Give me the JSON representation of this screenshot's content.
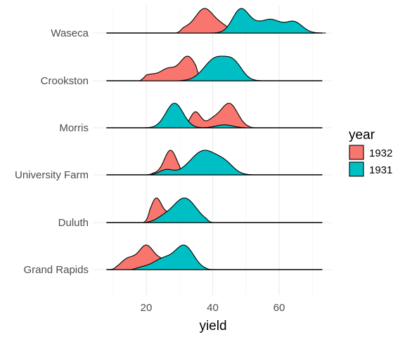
{
  "chart_data": {
    "type": "ridgeline-density",
    "title": "",
    "xlabel": "yield",
    "ylabel": "",
    "xlim": [
      7,
      74
    ],
    "x_ticks": [
      20,
      40,
      60
    ],
    "x_tick_labels": [
      "20",
      "40",
      "60"
    ],
    "categories": [
      "Grand Rapids",
      "Duluth",
      "University Farm",
      "Morris",
      "Crookston",
      "Waseca"
    ],
    "grid": true,
    "legend": {
      "title": "year",
      "position": "right",
      "entries": [
        {
          "label": "1932",
          "color": "#F8766D"
        },
        {
          "label": "1931",
          "color": "#00BFC4"
        }
      ]
    },
    "series": [
      {
        "name": "1932",
        "color": "#F8766D",
        "ridges": [
          {
            "category": "Waseca",
            "range": [
              29,
              47
            ],
            "peaks": [
              {
                "mu": 37.5,
                "sd": 2.8,
                "h": 1.0
              },
              {
                "mu": 31.5,
                "sd": 2.0,
                "h": 0.15
              },
              {
                "mu": 43,
                "sd": 2.2,
                "h": 0.25
              }
            ]
          },
          {
            "category": "Crookston",
            "range": [
              18,
              37
            ],
            "peaks": [
              {
                "mu": 32.5,
                "sd": 2.5,
                "h": 1.0
              },
              {
                "mu": 26.5,
                "sd": 2.2,
                "h": 0.45
              },
              {
                "mu": 21,
                "sd": 2.5,
                "h": 0.25
              }
            ]
          },
          {
            "category": "Morris",
            "range": [
              30,
              53
            ],
            "peaks": [
              {
                "mu": 34.8,
                "sd": 1.6,
                "h": 0.65
              },
              {
                "mu": 45,
                "sd": 2.5,
                "h": 1.0
              },
              {
                "mu": 40,
                "sd": 2.0,
                "h": 0.3
              }
            ]
          },
          {
            "category": "University Farm",
            "range": [
              20,
              32
            ],
            "peaks": [
              {
                "mu": 27.3,
                "sd": 1.9,
                "h": 1.0
              },
              {
                "mu": 22.5,
                "sd": 1.5,
                "h": 0.05
              }
            ]
          },
          {
            "category": "Duluth",
            "range": [
              19,
              30
            ],
            "peaks": [
              {
                "mu": 23,
                "sd": 1.7,
                "h": 1.0
              },
              {
                "mu": 28,
                "sd": 2.0,
                "h": 0.45
              }
            ]
          },
          {
            "category": "Grand Rapids",
            "range": [
              9,
              28
            ],
            "peaks": [
              {
                "mu": 20,
                "sd": 2.3,
                "h": 1.0
              },
              {
                "mu": 14.5,
                "sd": 2.2,
                "h": 0.45
              },
              {
                "mu": 25,
                "sd": 2.0,
                "h": 0.35
              }
            ]
          }
        ]
      },
      {
        "name": "1931",
        "color": "#00BFC4",
        "ridges": [
          {
            "category": "Waseca",
            "range": [
              36,
              74
            ],
            "peaks": [
              {
                "mu": 48.5,
                "sd": 2.5,
                "h": 1.0
              },
              {
                "mu": 57.5,
                "sd": 3.0,
                "h": 0.55
              },
              {
                "mu": 64.5,
                "sd": 2.5,
                "h": 0.45
              },
              {
                "mu": 53,
                "sd": 2.0,
                "h": 0.15
              }
            ]
          },
          {
            "category": "Crookston",
            "range": [
              29,
              56
            ],
            "peaks": [
              {
                "mu": 41,
                "sd": 3.5,
                "h": 1.0
              },
              {
                "mu": 46.5,
                "sd": 2.5,
                "h": 0.65
              }
            ]
          },
          {
            "category": "Morris",
            "range": [
              17,
              52
            ],
            "peaks": [
              {
                "mu": 28.5,
                "sd": 2.6,
                "h": 1.0
              },
              {
                "mu": 43.5,
                "sd": 2.5,
                "h": 0.12
              }
            ]
          },
          {
            "category": "University Farm",
            "range": [
              19,
              53
            ],
            "peaks": [
              {
                "mu": 37.5,
                "sd": 4.2,
                "h": 1.0
              },
              {
                "mu": 26,
                "sd": 2.0,
                "h": 0.2
              },
              {
                "mu": 44,
                "sd": 2.5,
                "h": 0.3
              }
            ]
          },
          {
            "category": "Duluth",
            "range": [
              19,
              40
            ],
            "peaks": [
              {
                "mu": 31.5,
                "sd": 3.5,
                "h": 1.0
              },
              {
                "mu": 25,
                "sd": 2.2,
                "h": 0.15
              }
            ]
          },
          {
            "category": "Grand Rapids",
            "range": [
              15,
              40
            ],
            "peaks": [
              {
                "mu": 31.5,
                "sd": 2.8,
                "h": 1.0
              },
              {
                "mu": 25,
                "sd": 3.0,
                "h": 0.45
              },
              {
                "mu": 19,
                "sd": 2.0,
                "h": 0.08
              }
            ]
          }
        ]
      }
    ]
  }
}
